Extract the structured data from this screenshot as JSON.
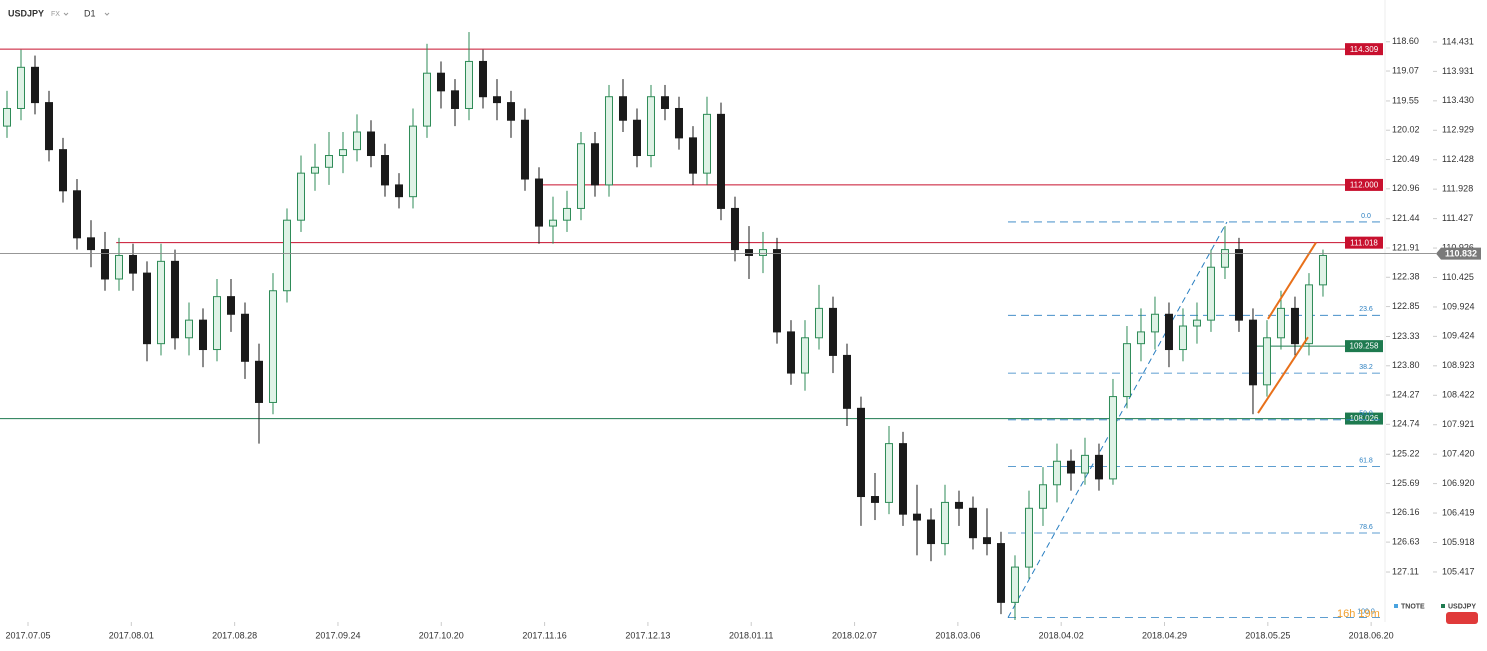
{
  "chart_data": {
    "type": "candlestick",
    "symbol": "USDJPY",
    "market": "FX",
    "interval": "D1",
    "up_color": "#2e8b57",
    "down_color": "#1a1a1a",
    "xlim": [
      -0.5,
      98.43
    ],
    "xticks": [
      {
        "value": 1.5,
        "label": "2017.07.05"
      },
      {
        "value": 8.88,
        "label": "2017.08.01"
      },
      {
        "value": 16.26,
        "label": "2017.08.28"
      },
      {
        "value": 23.64,
        "label": "2017.09.24"
      },
      {
        "value": 31.02,
        "label": "2017.10.20"
      },
      {
        "value": 38.4,
        "label": "2017.11.16"
      },
      {
        "value": 45.78,
        "label": "2017.12.13"
      },
      {
        "value": 53.16,
        "label": "2018.01.11"
      },
      {
        "value": 60.54,
        "label": "2018.02.07"
      },
      {
        "value": 67.92,
        "label": "2018.03.06"
      },
      {
        "value": 75.3,
        "label": "2018.04.02"
      },
      {
        "value": 82.68,
        "label": "2018.04.29"
      },
      {
        "value": 90.06,
        "label": "2018.05.25"
      },
      {
        "value": 97.44,
        "label": "2018.06.20"
      }
    ],
    "ylim": [
      104.6,
      115.145
    ],
    "yticks": [
      114.431,
      113.931,
      {
        "value": 113.43,
        "label": "113.430"
      },
      112.929,
      112.428,
      111.928,
      111.427,
      110.926,
      110.425,
      109.924,
      109.424,
      108.923,
      108.422,
      107.921,
      {
        "value": 107.42,
        "label": "107.420"
      },
      {
        "value": 106.92,
        "label": "106.920"
      },
      106.419,
      105.918,
      105.417
    ],
    "y2_name": "TNOTE",
    "y2lim": [
      127.88,
      117.93
    ],
    "y2ticks": [
      {
        "value": 118.6,
        "label": "118.60"
      },
      119.07,
      119.55,
      120.02,
      120.49,
      120.96,
      121.44,
      121.91,
      122.38,
      122.85,
      123.33,
      {
        "value": 123.8,
        "label": "123.80"
      },
      124.27,
      124.74,
      125.22,
      125.69,
      126.16,
      126.63,
      127.11
    ],
    "candles": [
      [
        113.0,
        113.6,
        112.8,
        113.3
      ],
      [
        113.3,
        114.3,
        113.1,
        114.0
      ],
      [
        114.0,
        114.2,
        113.2,
        113.4
      ],
      [
        113.4,
        113.6,
        112.4,
        112.6
      ],
      [
        112.6,
        112.8,
        111.7,
        111.9
      ],
      [
        111.9,
        112.1,
        110.9,
        111.1
      ],
      [
        111.1,
        111.4,
        110.6,
        110.9
      ],
      [
        110.9,
        111.2,
        110.2,
        110.4
      ],
      [
        110.4,
        111.1,
        110.2,
        110.8
      ],
      [
        110.8,
        111.0,
        110.2,
        110.5
      ],
      [
        110.5,
        110.7,
        109.0,
        109.3
      ],
      [
        109.3,
        111.0,
        109.1,
        110.7
      ],
      [
        110.7,
        110.9,
        109.2,
        109.4
      ],
      [
        109.4,
        110.0,
        109.1,
        109.7
      ],
      [
        109.7,
        109.9,
        108.9,
        109.2
      ],
      [
        109.2,
        110.4,
        109.0,
        110.1
      ],
      [
        110.1,
        110.4,
        109.5,
        109.8
      ],
      [
        109.8,
        110.0,
        108.7,
        109.0
      ],
      [
        109.0,
        109.3,
        107.6,
        108.3
      ],
      [
        108.3,
        110.5,
        108.1,
        110.2
      ],
      [
        110.2,
        111.6,
        110.0,
        111.4
      ],
      [
        111.4,
        112.5,
        111.2,
        112.2
      ],
      [
        112.2,
        112.7,
        111.9,
        112.3
      ],
      [
        112.3,
        112.9,
        112.0,
        112.5
      ],
      [
        112.5,
        112.9,
        112.2,
        112.6
      ],
      [
        112.6,
        113.2,
        112.4,
        112.9
      ],
      [
        112.9,
        113.1,
        112.3,
        112.5
      ],
      [
        112.5,
        112.7,
        111.8,
        112.0
      ],
      [
        112.0,
        112.2,
        111.6,
        111.8
      ],
      [
        111.8,
        113.3,
        111.6,
        113.0
      ],
      [
        113.0,
        114.4,
        112.8,
        113.9
      ],
      [
        113.9,
        114.1,
        113.3,
        113.6
      ],
      [
        113.6,
        113.8,
        113.0,
        113.3
      ],
      [
        113.3,
        114.6,
        113.1,
        114.1
      ],
      [
        114.1,
        114.3,
        113.3,
        113.5
      ],
      [
        113.5,
        113.8,
        113.1,
        113.4
      ],
      [
        113.4,
        113.6,
        112.8,
        113.1
      ],
      [
        113.1,
        113.3,
        111.9,
        112.1
      ],
      [
        112.1,
        112.3,
        111.0,
        111.3
      ],
      [
        111.3,
        111.8,
        111.0,
        111.4
      ],
      [
        111.4,
        111.9,
        111.2,
        111.6
      ],
      [
        111.6,
        112.9,
        111.4,
        112.7
      ],
      [
        112.7,
        112.9,
        111.8,
        112.0
      ],
      [
        112.0,
        113.7,
        111.8,
        113.5
      ],
      [
        113.5,
        113.8,
        112.9,
        113.1
      ],
      [
        113.1,
        113.3,
        112.3,
        112.5
      ],
      [
        112.5,
        113.7,
        112.3,
        113.5
      ],
      [
        113.5,
        113.7,
        113.1,
        113.3
      ],
      [
        113.3,
        113.5,
        112.6,
        112.8
      ],
      [
        112.8,
        113.0,
        112.0,
        112.2
      ],
      [
        112.2,
        113.5,
        112.0,
        113.2
      ],
      [
        113.2,
        113.4,
        111.4,
        111.6
      ],
      [
        111.6,
        111.8,
        110.7,
        110.9
      ],
      [
        110.9,
        111.3,
        110.4,
        110.8
      ],
      [
        110.8,
        111.2,
        110.5,
        110.9
      ],
      [
        110.9,
        111.1,
        109.3,
        109.5
      ],
      [
        109.5,
        109.7,
        108.6,
        108.8
      ],
      [
        108.8,
        109.7,
        108.5,
        109.4
      ],
      [
        109.4,
        110.3,
        109.2,
        109.9
      ],
      [
        109.9,
        110.1,
        108.8,
        109.1
      ],
      [
        109.1,
        109.3,
        107.9,
        108.2
      ],
      [
        108.2,
        108.4,
        106.2,
        106.7
      ],
      [
        106.7,
        107.1,
        106.3,
        106.6
      ],
      [
        106.6,
        107.9,
        106.4,
        107.6
      ],
      [
        107.6,
        107.8,
        106.2,
        106.4
      ],
      [
        106.4,
        106.9,
        105.7,
        106.3
      ],
      [
        106.3,
        106.5,
        105.6,
        105.9
      ],
      [
        105.9,
        106.9,
        105.7,
        106.6
      ],
      [
        106.6,
        106.8,
        106.2,
        106.5
      ],
      [
        106.5,
        106.7,
        105.8,
        106.0
      ],
      [
        106.0,
        106.5,
        105.7,
        105.9
      ],
      [
        105.9,
        106.1,
        104.7,
        104.9
      ],
      [
        104.9,
        105.7,
        104.6,
        105.5
      ],
      [
        105.5,
        106.8,
        105.3,
        106.5
      ],
      [
        106.5,
        107.2,
        106.2,
        106.9
      ],
      [
        106.9,
        107.6,
        106.6,
        107.3
      ],
      [
        107.3,
        107.5,
        106.8,
        107.1
      ],
      [
        107.1,
        107.7,
        106.9,
        107.4
      ],
      [
        107.4,
        107.6,
        106.8,
        107.0
      ],
      [
        107.0,
        108.7,
        106.9,
        108.4
      ],
      [
        108.4,
        109.6,
        108.2,
        109.3
      ],
      [
        109.3,
        109.9,
        109.0,
        109.5
      ],
      [
        109.5,
        110.1,
        109.2,
        109.8
      ],
      [
        109.8,
        110.0,
        108.9,
        109.2
      ],
      [
        109.2,
        109.9,
        109.0,
        109.6
      ],
      [
        109.6,
        110.0,
        109.3,
        109.7
      ],
      [
        109.7,
        110.9,
        109.5,
        110.6
      ],
      [
        110.6,
        111.3,
        110.4,
        110.9
      ],
      [
        110.9,
        111.1,
        109.5,
        109.7
      ],
      [
        109.7,
        109.9,
        108.1,
        108.6
      ],
      [
        108.6,
        109.7,
        108.4,
        109.4
      ],
      [
        109.4,
        110.2,
        109.2,
        109.9
      ],
      [
        109.9,
        110.1,
        109.1,
        109.3
      ],
      [
        109.3,
        110.5,
        109.1,
        110.3
      ],
      [
        110.3,
        110.9,
        110.1,
        110.8
      ]
    ],
    "levels": [
      {
        "price": 114.309,
        "color": "#c8102e",
        "start": -0.5
      },
      {
        "price": {
          "value": 112,
          "label": "112.000"
        },
        "color": "#c8102e",
        "start": 37.8
      },
      {
        "price": 111.018,
        "color": "#c8102e",
        "start": 7.8
      },
      {
        "price": 109.258,
        "color": "#1e7a4f",
        "start": 89.1
      },
      {
        "price": 108.026,
        "color": "#1e7a4f",
        "start": -0.5
      }
    ],
    "last_price": 110.832,
    "fibonacci": {
      "color": "#2a7fc1",
      "high": 111.37,
      "low": 104.64,
      "start": 71.5,
      "end": 87.14,
      "levels": [
        {
          "value": 0,
          "label": "0.0"
        },
        23.6,
        38.2,
        {
          "value": 50,
          "label": "50.0"
        },
        61.8,
        78.6,
        {
          "value": 100,
          "label": "100.0"
        }
      ]
    },
    "channel": {
      "color": "#e8701a",
      "lines": [
        {
          "x": [
            90.07,
            93.5
          ],
          "y": [
            109.72,
            111.02
          ]
        },
        {
          "x": [
            89.36,
            92.93
          ],
          "y": [
            108.12,
            109.41
          ]
        }
      ]
    },
    "legend": [
      {
        "name": "TNOTE",
        "color": "#4aa3df"
      },
      {
        "name": "USDJPY",
        "color": "#1e7a4f"
      }
    ],
    "timer": "16h 19m"
  }
}
